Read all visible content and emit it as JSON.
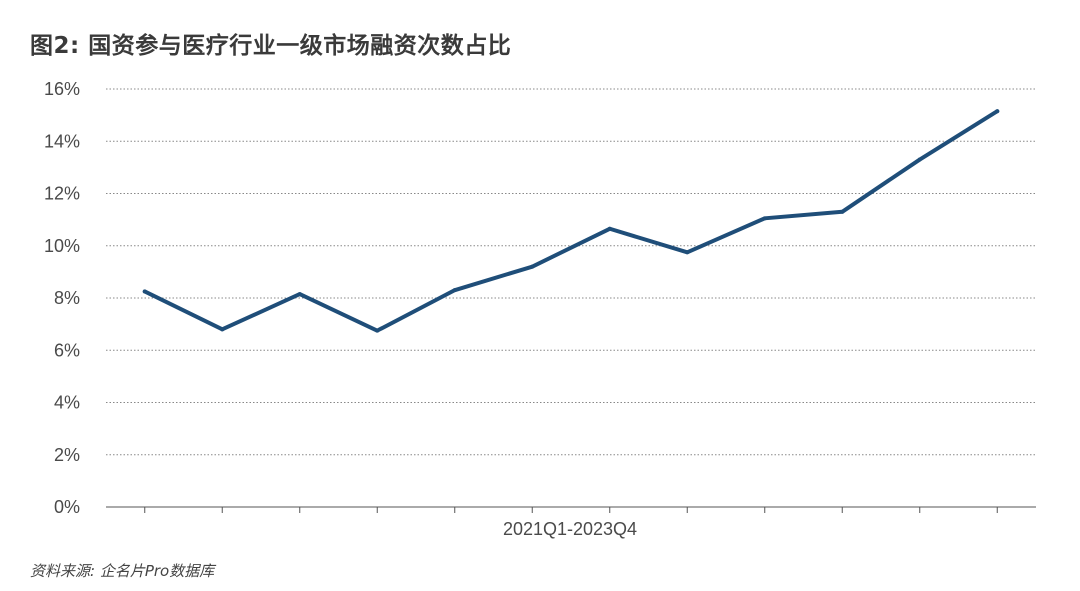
{
  "title": "图2: 国资参与医疗行业一级市场融资次数占比",
  "source": "资料来源: 企名片Pro数据库",
  "colors": {
    "line": "#1f4e79",
    "grid": "#888888",
    "axis": "#555555"
  },
  "chart_data": {
    "type": "line",
    "xlabel": "2021Q1-2023Q4",
    "ylabel": "",
    "ylim": [
      0,
      16
    ],
    "yticks": [
      0,
      2,
      4,
      6,
      8,
      10,
      12,
      14,
      16
    ],
    "ytick_labels": [
      "0%",
      "2%",
      "4%",
      "6%",
      "8%",
      "10%",
      "12%",
      "14%",
      "16%"
    ],
    "grid": "horizontal dotted",
    "series": [
      {
        "values": [
          8.25,
          6.8,
          8.15,
          6.75,
          8.3,
          9.2,
          10.65,
          9.75,
          11.05,
          11.3,
          13.3,
          15.15
        ]
      }
    ]
  }
}
